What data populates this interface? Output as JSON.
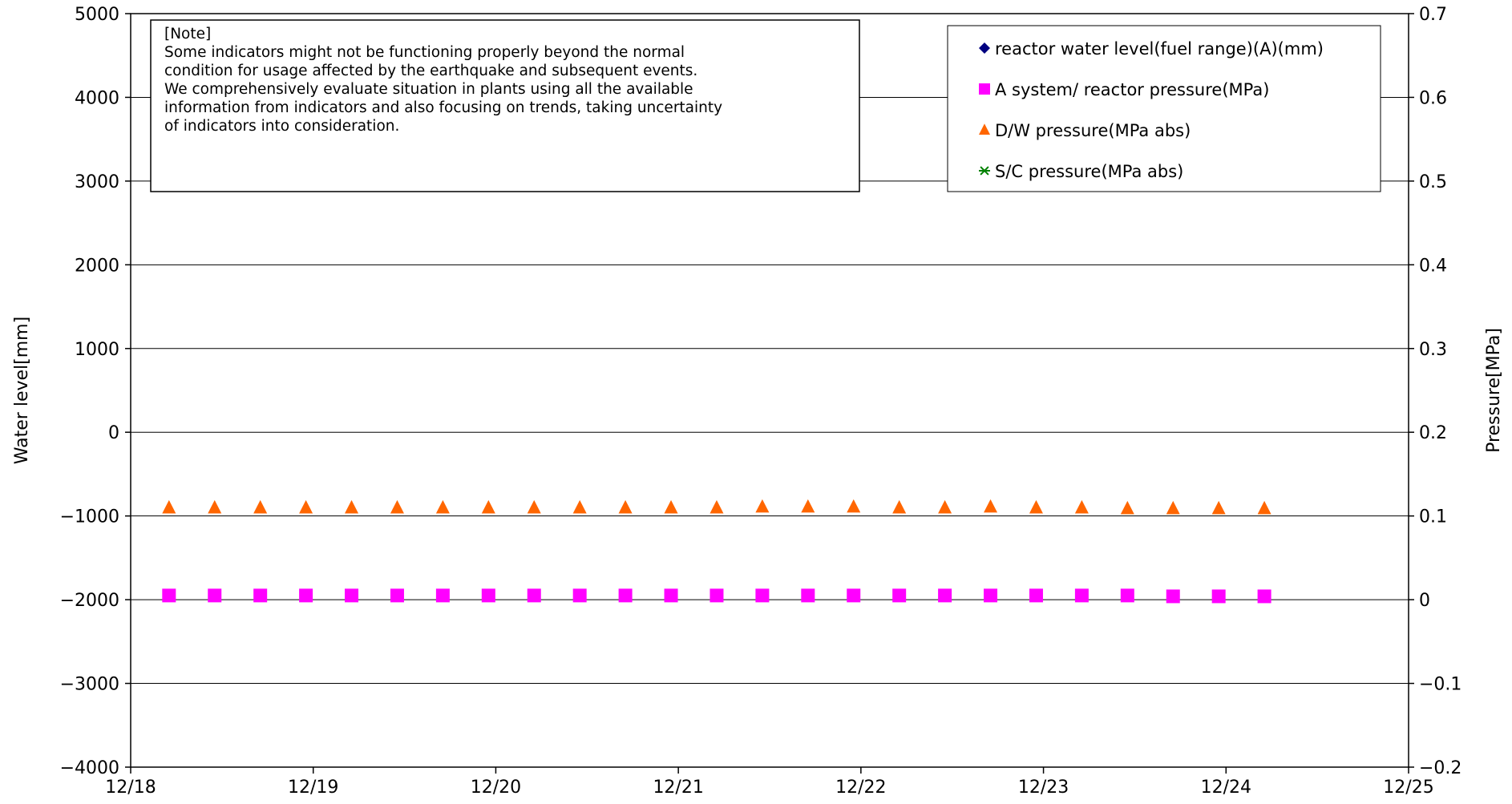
{
  "chart_data": {
    "type": "scatter",
    "title": "",
    "xlabel": "",
    "ylabel_left": "Water level[mm]",
    "ylabel_right": "Pressure[MPa]",
    "x_ticks": [
      "12/18",
      "12/19",
      "12/20",
      "12/21",
      "12/22",
      "12/23",
      "12/24",
      "12/25"
    ],
    "ylim_left": [
      -4000,
      5000
    ],
    "ylim_right": [
      -0.2,
      0.7
    ],
    "y_ticks_left": [
      "5000",
      "4000",
      "3000",
      "2000",
      "1000",
      "0",
      "−1000",
      "−2000",
      "−3000",
      "−4000"
    ],
    "y_ticks_right": [
      "0.7",
      "0.6",
      "0.5",
      "0.4",
      "0.3",
      "0.2",
      "0.1",
      "0",
      "−0.1",
      "−0.2"
    ],
    "grid": "horizontal",
    "legend_position": "top-right",
    "note": {
      "lines": [
        "[Note]",
        "Some indicators might not be functioning properly beyond the normal",
        "condition for usage affected by the earthquake and subsequent events.",
        "We comprehensively evaluate situation in plants using all the available",
        "information from indicators and also focusing on trends, taking uncertainty",
        "of indicators into consideration."
      ]
    },
    "series": [
      {
        "name": "reactor water level(fuel range)(A)(mm)",
        "axis": "left",
        "marker": "diamond",
        "color": "#000080",
        "x_days": [],
        "values": []
      },
      {
        "name": "A system/ reactor pressure(MPa)",
        "axis": "right",
        "marker": "square",
        "color": "#ff00ff",
        "x_days": [
          0.21,
          0.46,
          0.71,
          0.96,
          1.21,
          1.46,
          1.71,
          1.96,
          2.21,
          2.46,
          2.71,
          2.96,
          3.21,
          3.46,
          3.71,
          3.96,
          4.21,
          4.46,
          4.71,
          4.96,
          5.21,
          5.46,
          5.71,
          5.96,
          6.21
        ],
        "values": [
          0.005,
          0.005,
          0.005,
          0.005,
          0.005,
          0.005,
          0.005,
          0.005,
          0.005,
          0.005,
          0.005,
          0.005,
          0.005,
          0.005,
          0.005,
          0.005,
          0.005,
          0.005,
          0.005,
          0.005,
          0.005,
          0.005,
          0.004,
          0.004,
          0.004
        ]
      },
      {
        "name": "D/W pressure(MPa abs)",
        "axis": "right",
        "marker": "triangle",
        "color": "#ff6600",
        "x_days": [
          0.21,
          0.46,
          0.71,
          0.96,
          1.21,
          1.46,
          1.71,
          1.96,
          2.21,
          2.46,
          2.71,
          2.96,
          3.21,
          3.46,
          3.71,
          3.96,
          4.21,
          4.46,
          4.71,
          4.96,
          5.21,
          5.46,
          5.71,
          5.96,
          6.21
        ],
        "values": [
          0.11,
          0.11,
          0.11,
          0.11,
          0.11,
          0.11,
          0.11,
          0.11,
          0.11,
          0.11,
          0.11,
          0.11,
          0.11,
          0.111,
          0.111,
          0.111,
          0.11,
          0.11,
          0.111,
          0.11,
          0.11,
          0.109,
          0.109,
          0.109,
          0.109
        ]
      },
      {
        "name": "S/C pressure(MPa abs)",
        "axis": "right",
        "marker": "asterisk",
        "color": "#008000",
        "x_days": [],
        "values": []
      }
    ]
  }
}
